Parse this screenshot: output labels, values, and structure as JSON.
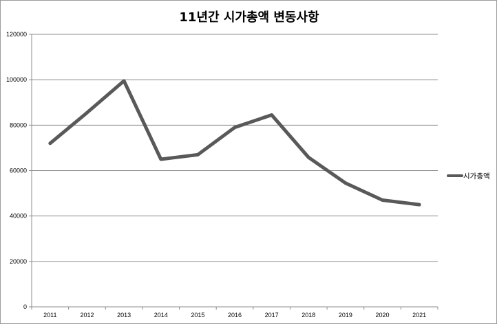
{
  "chart_data": {
    "type": "line",
    "title": "11년간 시가총액 변동사항",
    "xlabel": "",
    "ylabel": "",
    "categories": [
      "2011",
      "2012",
      "2013",
      "2014",
      "2015",
      "2016",
      "2017",
      "2018",
      "2019",
      "2020",
      "2021"
    ],
    "series": [
      {
        "name": "시가총액",
        "values": [
          72000,
          85500,
          99500,
          65000,
          67000,
          79000,
          84500,
          65800,
          54500,
          47000,
          45000
        ],
        "color": "#595959"
      }
    ],
    "ylim": [
      0,
      120000
    ],
    "yticks": [
      "0",
      "20000",
      "40000",
      "60000",
      "80000",
      "100000",
      "120000"
    ],
    "grid": true,
    "legend_position": "right"
  }
}
